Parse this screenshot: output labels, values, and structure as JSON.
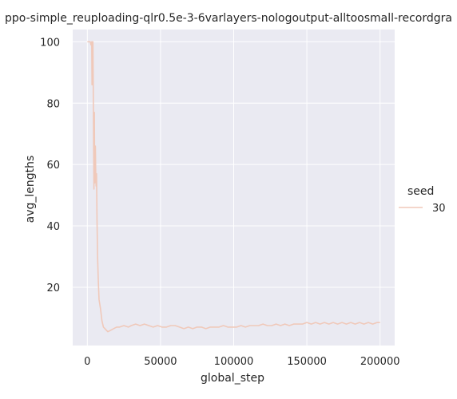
{
  "chart_data": {
    "type": "line",
    "title": "ppo-simple_reuploading-qlr0.5e-3-6varlayers-nologoutput-alltoosmall-recordgra",
    "xlabel": "global_step",
    "ylabel": "avg_lengths",
    "xlim": [
      -10000,
      210000
    ],
    "ylim": [
      1,
      104
    ],
    "xticks": [
      0,
      50000,
      100000,
      150000,
      200000
    ],
    "xtick_labels": [
      "0",
      "50000",
      "100000",
      "150000",
      "200000"
    ],
    "yticks": [
      20,
      40,
      60,
      80,
      100
    ],
    "ytick_labels": [
      "20",
      "40",
      "60",
      "80",
      "100"
    ],
    "grid": true,
    "legend": {
      "title": "seed",
      "placement": "right",
      "entries": [
        "30"
      ]
    },
    "colors": {
      "background": "#eaeaf2",
      "grid": "#ffffff",
      "line": "#f0c9ba",
      "text": "#262626"
    },
    "series": [
      {
        "name": "30",
        "x": [
          0,
          1000,
          2000,
          2500,
          3000,
          3200,
          3500,
          3800,
          4000,
          4200,
          4500,
          4800,
          5000,
          5200,
          5500,
          5800,
          6000,
          6300,
          6600,
          7000,
          7500,
          8000,
          9000,
          10000,
          11000,
          12000,
          13000,
          14000,
          16000,
          18000,
          20000,
          22000,
          25000,
          28000,
          30000,
          33000,
          36000,
          39000,
          42000,
          45000,
          48000,
          51000,
          54000,
          57000,
          60000,
          63000,
          66000,
          69000,
          72000,
          75000,
          78000,
          81000,
          84000,
          87000,
          90000,
          93000,
          96000,
          99000,
          102000,
          105000,
          108000,
          111000,
          114000,
          117000,
          120000,
          123000,
          126000,
          129000,
          132000,
          135000,
          138000,
          141000,
          144000,
          147000,
          150000,
          153000,
          156000,
          159000,
          162000,
          165000,
          168000,
          171000,
          174000,
          177000,
          180000,
          183000,
          186000,
          189000,
          192000,
          195000,
          198000,
          200000
        ],
        "y": [
          100,
          100,
          100,
          99,
          100,
          86,
          100,
          100,
          88,
          72,
          52,
          77,
          54,
          58,
          66,
          55,
          53,
          57,
          42,
          30,
          22,
          16,
          13,
          9,
          7,
          6.5,
          6,
          5.5,
          6,
          6.5,
          7,
          7,
          7.5,
          7,
          7.5,
          8,
          7.5,
          8,
          7.5,
          7,
          7.5,
          7,
          7,
          7.5,
          7.5,
          7,
          6.5,
          7,
          6.5,
          7,
          7,
          6.5,
          7,
          7,
          7,
          7.5,
          7,
          7,
          7,
          7.5,
          7,
          7.5,
          7.5,
          7.5,
          8,
          7.5,
          7.5,
          8,
          7.5,
          8,
          7.5,
          8,
          8,
          8,
          8.5,
          8,
          8.5,
          8,
          8.5,
          8,
          8.5,
          8,
          8.5,
          8,
          8.5,
          8,
          8.5,
          8,
          8.5,
          8,
          8.5,
          8.5
        ]
      }
    ]
  }
}
